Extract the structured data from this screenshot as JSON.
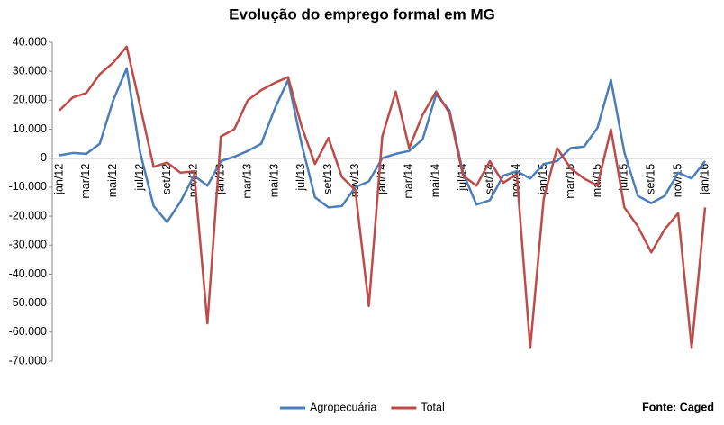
{
  "chart_data": {
    "type": "line",
    "title": "Evolução do emprego formal em MG",
    "source": "Fonte: Caged",
    "categories": [
      "jan/12",
      null,
      "mar/12",
      null,
      "mai/12",
      null,
      "jul/12",
      null,
      "set/12",
      null,
      "nov/12",
      null,
      "jan/13",
      null,
      "mar/13",
      null,
      "mai/13",
      null,
      "jul/13",
      null,
      "set/13",
      null,
      "nov/13",
      null,
      "jan/14",
      null,
      "mar/14",
      null,
      "mai/14",
      null,
      "jul/14",
      null,
      "set/14",
      null,
      "nov/14",
      null,
      "jan/15",
      null,
      "mar/15",
      null,
      "mai/15",
      null,
      "jul/15",
      null,
      "set/15",
      null,
      "nov/15",
      null,
      "jan/16"
    ],
    "series": [
      {
        "name": "Agropecuária",
        "color": "#4a7ebb",
        "values": [
          1000,
          1800,
          1500,
          5000,
          20000,
          31000,
          2000,
          -16500,
          -22000,
          -15000,
          -6000,
          -9500,
          -1000,
          500,
          2500,
          5000,
          17000,
          27000,
          5000,
          -13500,
          -17000,
          -16500,
          -10000,
          -8000,
          0,
          1500,
          2500,
          6500,
          22000,
          16500,
          -5000,
          -16000,
          -14500,
          -6000,
          -4500,
          -7000,
          -2000,
          -1000,
          3500,
          4000,
          10500,
          27000,
          2000,
          -13000,
          -15500,
          -13000,
          -5000,
          -7000,
          -1000
        ]
      },
      {
        "name": "Total",
        "color": "#be4b48",
        "values": [
          16500,
          21000,
          22500,
          29000,
          33000,
          38500,
          18000,
          -3000,
          -1500,
          -5000,
          -4500,
          -57000,
          7500,
          10000,
          20000,
          23500,
          26000,
          28000,
          11000,
          -2000,
          7000,
          -6500,
          -11000,
          -51000,
          7500,
          23000,
          3500,
          15000,
          23000,
          15500,
          -6000,
          -9500,
          -1000,
          -8500,
          -5500,
          -65500,
          -14000,
          3500,
          -3500,
          -7000,
          -9500,
          10000,
          -17000,
          -23500,
          -32500,
          -24500,
          -19000,
          -65500,
          -17000
        ]
      }
    ],
    "ylim": [
      -70000,
      40000
    ],
    "yticks": [
      {
        "value": -70000,
        "label": "-70.000"
      },
      {
        "value": -60000,
        "label": "-60.000"
      },
      {
        "value": -50000,
        "label": "-50.000"
      },
      {
        "value": -40000,
        "label": "-40.000"
      },
      {
        "value": -30000,
        "label": "-30.000"
      },
      {
        "value": -20000,
        "label": "-20.000"
      },
      {
        "value": -10000,
        "label": "-10.000"
      },
      0,
      {
        "value": 10000,
        "label": "10.000"
      },
      {
        "value": 20000,
        "label": "20.000"
      },
      {
        "value": 30000,
        "label": "30.000"
      },
      {
        "value": 40000,
        "label": "40.000"
      }
    ]
  }
}
